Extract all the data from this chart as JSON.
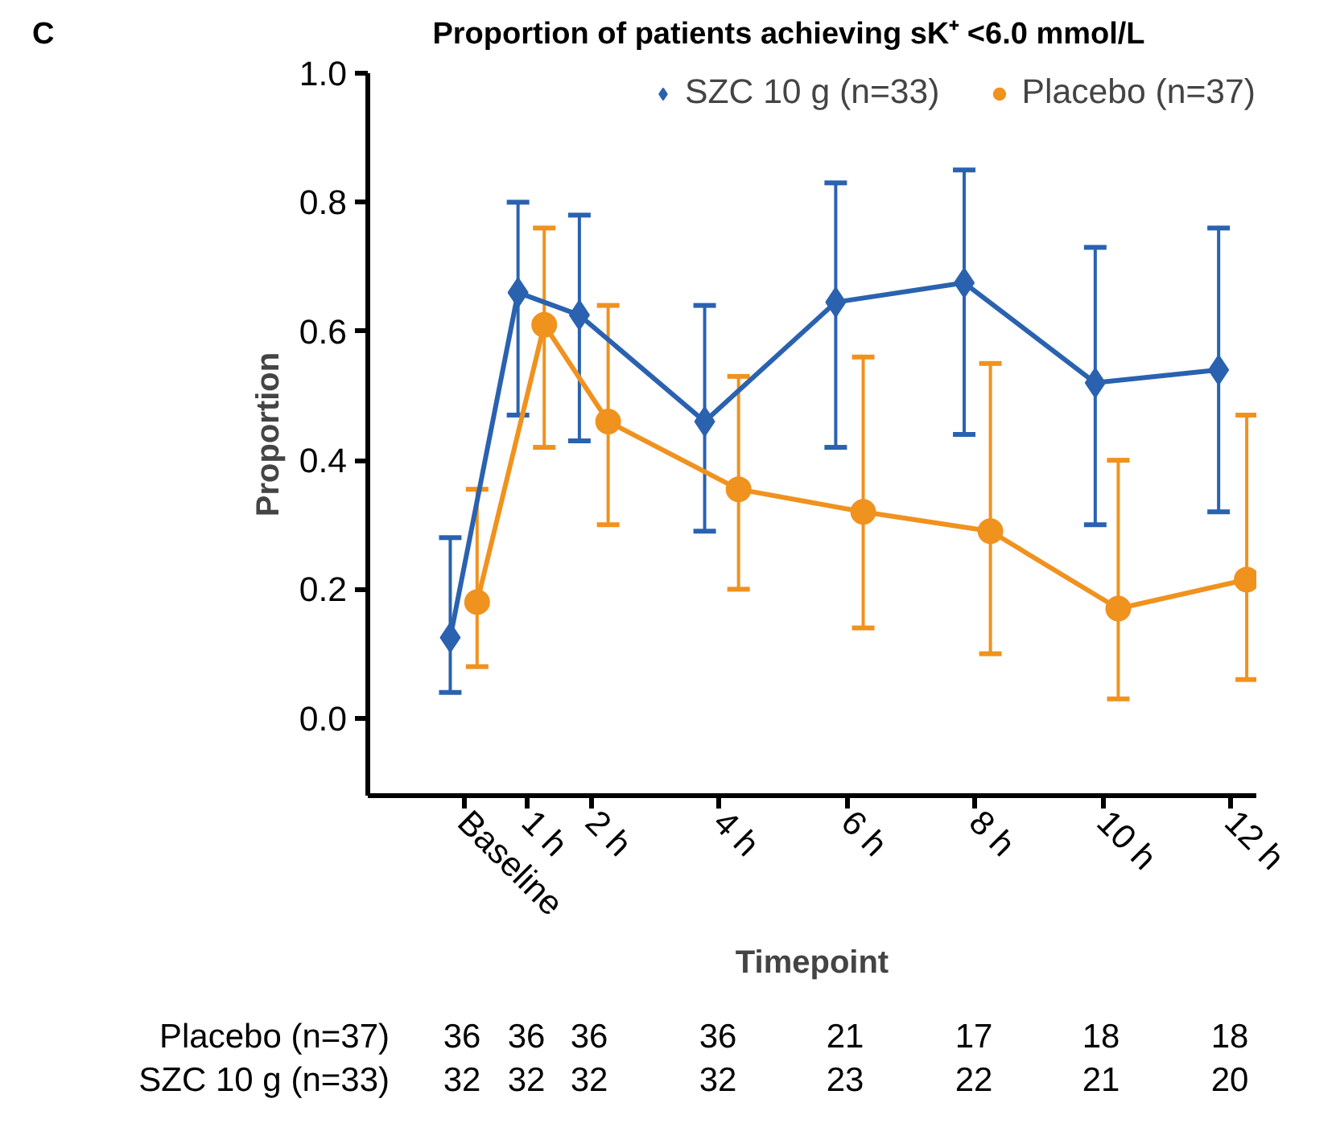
{
  "chart_data": {
    "type": "line",
    "title": "Proportion of patients achieving sK⁺ <6.0 mmol/L",
    "xlabel": "Timepoint",
    "ylabel": "Proportion",
    "xlim": [
      -1.5,
      12.4
    ],
    "xticks": [
      {
        "value": 0,
        "label": "Baseline"
      },
      {
        "value": 1,
        "label": "1 h"
      },
      {
        "value": 2,
        "label": "2 h"
      },
      {
        "value": 4,
        "label": "4 h"
      },
      {
        "value": 6,
        "label": "6 h"
      },
      {
        "value": 8,
        "label": "8 h"
      },
      {
        "value": 10,
        "label": "10 h"
      },
      {
        "value": 12,
        "label": "12 h"
      }
    ],
    "ylim": [
      -0.12,
      1.0
    ],
    "yticks": [
      {
        "value": 0,
        "label": "0.0"
      },
      {
        "value": 0.2,
        "label": "0.2"
      },
      {
        "value": 0.4,
        "label": "0.4"
      },
      {
        "value": 0.6,
        "label": "0.6"
      },
      {
        "value": 0.8,
        "label": "0.8"
      },
      {
        "value": 1.0,
        "label": "1.0"
      }
    ],
    "grid": false,
    "legend": "top",
    "series": [
      {
        "name": "SZC 10 g (n=33)",
        "color": "#2a62b0",
        "marker": "diamond",
        "x": [
          -0.21,
          0.85,
          1.81,
          3.77,
          5.82,
          7.83,
          9.88,
          11.81
        ],
        "values": [
          0.125,
          0.66,
          0.625,
          0.46,
          0.645,
          0.675,
          0.52,
          0.54
        ],
        "errors": [
          [
            0.04,
            0.28
          ],
          [
            0.47,
            0.8
          ],
          [
            0.43,
            0.78
          ],
          [
            0.29,
            0.64
          ],
          [
            0.42,
            0.83
          ],
          [
            0.44,
            0.85
          ],
          [
            0.3,
            0.73
          ],
          [
            0.32,
            0.76
          ]
        ]
      },
      {
        "name": "Placebo (n=37)",
        "color": "#f0921e",
        "marker": "circle",
        "x": [
          0.21,
          1.26,
          2.26,
          4.3,
          6.25,
          8.24,
          10.24,
          12.25
        ],
        "values": [
          0.18,
          0.61,
          0.46,
          0.355,
          0.32,
          0.29,
          0.17,
          0.215
        ],
        "errors": [
          [
            0.08,
            0.355
          ],
          [
            0.42,
            0.76
          ],
          [
            0.3,
            0.64
          ],
          [
            0.2,
            0.53
          ],
          [
            0.14,
            0.56
          ],
          [
            0.1,
            0.55
          ],
          [
            0.03,
            0.4
          ],
          [
            0.06,
            0.47
          ]
        ]
      }
    ],
    "annotations": [
      "C",
      "Placebo (n=37)",
      "36",
      "36",
      "36",
      "36",
      "21",
      "17",
      "18",
      "18",
      "SZC 10 g (n=33)",
      "32",
      "32",
      "32",
      "32",
      "23",
      "22",
      "21",
      "20"
    ]
  }
}
